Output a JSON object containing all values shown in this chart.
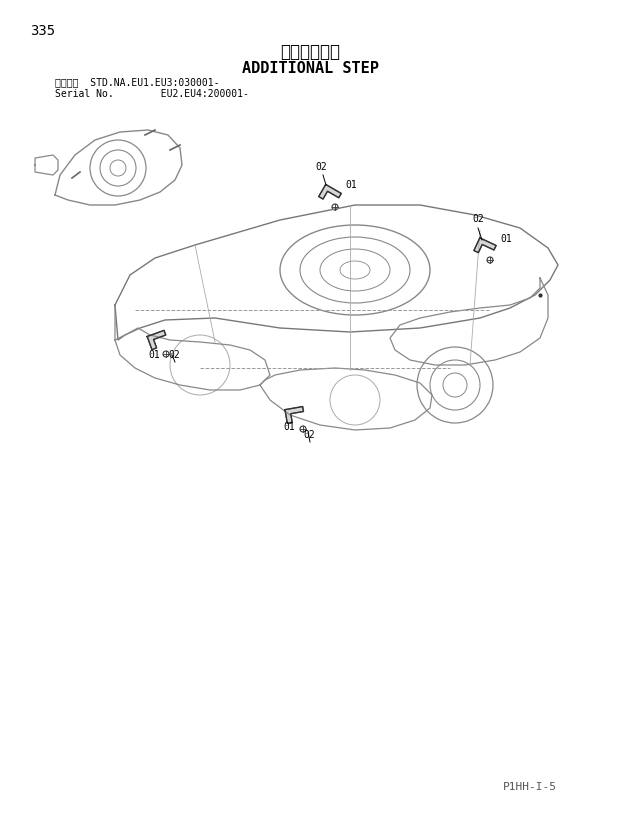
{
  "page_number": "335",
  "title_japanese": "追加ステップ",
  "title_english": "ADDITIONAL STEP",
  "serial_line1": "適用号機  STD.NA.EU1.EU3:030001-",
  "serial_line2": "Serial No.        EU2.EU4:200001-",
  "footer": "P1HH-I-5",
  "background_color": "#ffffff",
  "line_color": "#000000",
  "diagram_color": "#555555"
}
